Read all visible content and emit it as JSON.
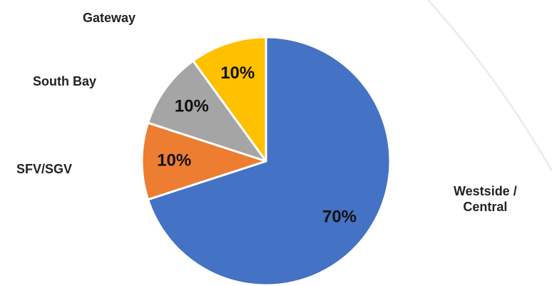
{
  "chart_data": {
    "type": "pie",
    "slices": [
      {
        "label": "Westside / Central",
        "value": 70,
        "value_label": "70%",
        "color": "#4472C4"
      },
      {
        "label": "SFV/SGV",
        "value": 10,
        "value_label": "10%",
        "color": "#ED7D31"
      },
      {
        "label": "South Bay",
        "value": 10,
        "value_label": "10%",
        "color": "#A5A5A5"
      },
      {
        "label": "Gateway",
        "value": 10,
        "value_label": "10%",
        "color": "#FFC000"
      }
    ],
    "title": "",
    "legend": "none"
  },
  "labels": {
    "westside_line1": "Westside /",
    "westside_line2": "Central"
  }
}
